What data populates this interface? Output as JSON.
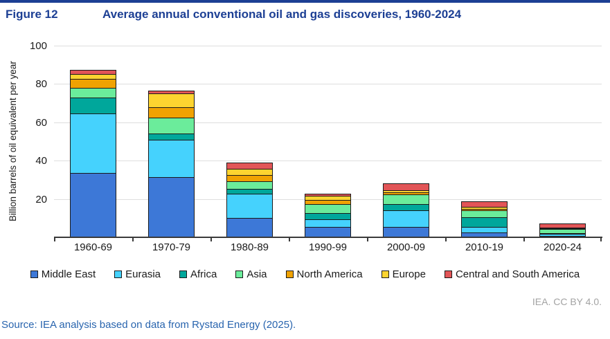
{
  "figure": {
    "label": "Figure 12",
    "title": "Average annual conventional oil and gas discoveries, 1960-2024"
  },
  "chart_data": {
    "type": "bar",
    "stacked": true,
    "title": "Average annual conventional oil and gas discoveries, 1960-2024",
    "ylabel": "Billion barrels of oil equivalent per year",
    "xlabel": "",
    "ylim": [
      0,
      100
    ],
    "yticks": [
      20,
      40,
      60,
      80,
      100
    ],
    "grid": "horizontal",
    "legend_position": "bottom",
    "categories": [
      "1960-69",
      "1970-79",
      "1980-89",
      "1990-99",
      "2000-09",
      "2010-19",
      "2020-24"
    ],
    "series": [
      {
        "name": "Middle East",
        "color": "#3D78D7",
        "values": [
          33.5,
          31.3,
          10.1,
          5.3,
          5.3,
          2.4,
          0.7
        ]
      },
      {
        "name": "Eurasia",
        "color": "#45D2FD",
        "values": [
          31.5,
          19.9,
          13.0,
          4.6,
          9.2,
          3.4,
          1.3
        ]
      },
      {
        "name": "Africa",
        "color": "#00A79B",
        "values": [
          8.5,
          3.6,
          3.0,
          3.6,
          3.6,
          5.4,
          1.0
        ]
      },
      {
        "name": "Asia",
        "color": "#6BEC9B",
        "values": [
          5.7,
          8.8,
          4.2,
          4.8,
          5.3,
          4.0,
          2.3
        ]
      },
      {
        "name": "North America",
        "color": "#F0A202",
        "values": [
          4.8,
          5.8,
          3.6,
          2.8,
          1.6,
          1.2,
          0.8
        ]
      },
      {
        "name": "Europe",
        "color": "#FDD430",
        "values": [
          3.2,
          7.6,
          3.6,
          2.3,
          1.2,
          1.2,
          0.5
        ]
      },
      {
        "name": "Central and South America",
        "color": "#E25557",
        "values": [
          2.3,
          1.7,
          3.6,
          1.7,
          4.0,
          3.3,
          2.5
        ]
      }
    ],
    "totals": [
      89.5,
      78.7,
      41.1,
      25.1,
      30.2,
      20.9,
      9.1
    ]
  },
  "footer": {
    "attribution": "IEA. CC BY 4.0.",
    "source": "Source: IEA analysis based on data from Rystad Energy (2025)."
  },
  "colors": {
    "accent_blue": "#1C3F94",
    "source_blue": "#2864AE",
    "attribution_gray": "#A3A3A3",
    "gridline_gray": "#DEDEDE"
  }
}
